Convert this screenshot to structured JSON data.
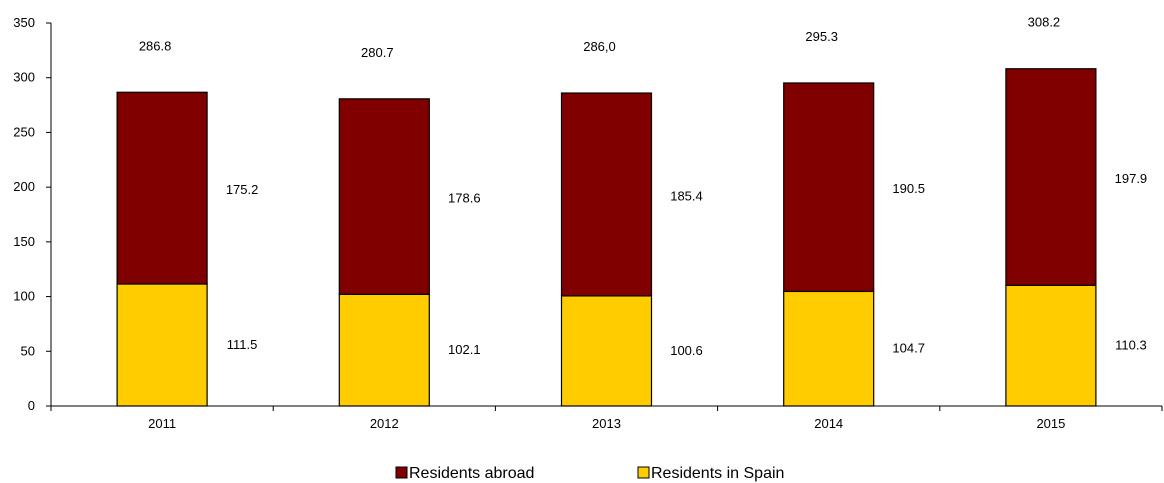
{
  "chart_data": {
    "type": "bar",
    "stacked": true,
    "categories": [
      "2011",
      "2012",
      "2013",
      "2014",
      "2015"
    ],
    "series": [
      {
        "name": "Residents in Spain",
        "values": [
          111.5,
          102.1,
          100.6,
          104.7,
          110.3
        ],
        "labels": [
          "111.5",
          "102.1",
          "100.6",
          "104.7",
          "110.3"
        ],
        "color": "#FFCC00"
      },
      {
        "name": "Residents abroad",
        "values": [
          175.2,
          178.6,
          185.4,
          190.5,
          197.9
        ],
        "labels": [
          "175.2",
          "178.6",
          "185.4",
          "190.5",
          "197.9"
        ],
        "color": "#800000"
      }
    ],
    "totals": [
      "286.8",
      "280.7",
      "286,0",
      "295.3",
      "308.2"
    ],
    "yticks": [
      "0",
      "50",
      "100",
      "150",
      "200",
      "250",
      "300",
      "350"
    ],
    "ylim": [
      0,
      350
    ],
    "grid": false,
    "legend_position": "bottom",
    "legend_order": [
      "Residents abroad",
      "Residents in Spain"
    ]
  }
}
